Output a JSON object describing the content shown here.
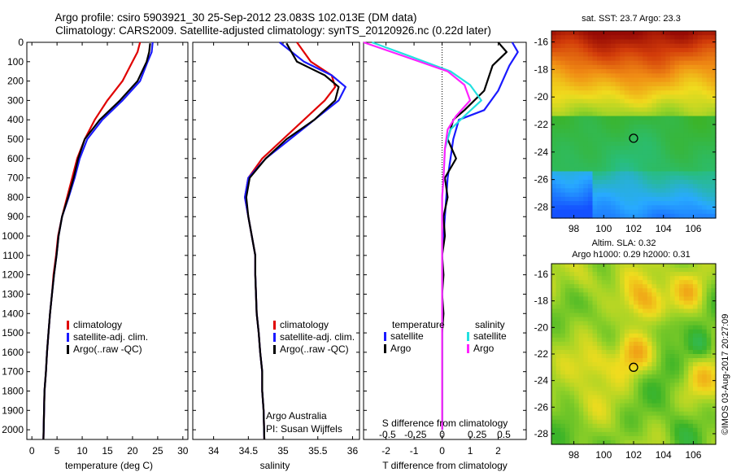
{
  "header": {
    "line1": "Argo profile: csiro 5903921_30 25-Sep-2012 23.083S 102.013E (DM data)",
    "line2": "Climatology: CARS2009. Satellite-adjusted climatology: synTS_20120926.nc (0.22d later)"
  },
  "colors": {
    "climatology": "#e00000",
    "satellite": "#1a1aff",
    "argo": "#000000",
    "sat_salinity": "#22e0e0",
    "argo_salinity": "#ff22ff"
  },
  "chart_data": [
    {
      "type": "line",
      "id": "temperature",
      "xlabel": "temperature (deg C)",
      "ylabel": "",
      "xlim": [
        -1,
        31
      ],
      "ylim": [
        2050,
        0
      ],
      "xticks": [
        0,
        5,
        10,
        15,
        20,
        25,
        30
      ],
      "yticks": [
        0,
        100,
        200,
        300,
        400,
        500,
        600,
        700,
        800,
        900,
        1000,
        1100,
        1200,
        1300,
        1400,
        1500,
        1600,
        1700,
        1800,
        1900,
        2000
      ],
      "legend": [
        "climatology",
        "satellite-adj. clim.",
        "Argo(..raw -QC)"
      ],
      "series": [
        {
          "name": "climatology",
          "color": "#e00000",
          "x": [
            21.5,
            21,
            20,
            18,
            15,
            12.5,
            10.5,
            9,
            8,
            7,
            6,
            5.2,
            4.8,
            4.3,
            4,
            3.6,
            3.3,
            3,
            2.8,
            2.5,
            2.3
          ],
          "y": [
            0,
            50,
            100,
            200,
            300,
            400,
            500,
            600,
            700,
            800,
            900,
            1000,
            1100,
            1200,
            1300,
            1400,
            1500,
            1600,
            1700,
            1800,
            2050
          ]
        },
        {
          "name": "satellite-adj. clim.",
          "color": "#1a1aff",
          "x": [
            24,
            23.8,
            23,
            21.5,
            18,
            14,
            11,
            9.5,
            8.5,
            7.3,
            6,
            5.3,
            4.9,
            4.4,
            4,
            3.6,
            3.3,
            3,
            2.8,
            2.5,
            2.3
          ],
          "y": [
            0,
            50,
            100,
            200,
            300,
            400,
            500,
            600,
            700,
            800,
            900,
            1000,
            1100,
            1200,
            1300,
            1400,
            1500,
            1600,
            1700,
            1800,
            2050
          ]
        },
        {
          "name": "Argo(..raw -QC)",
          "color": "#000000",
          "x": [
            23.5,
            23.3,
            22.8,
            21,
            17.5,
            13.5,
            10.5,
            9.2,
            8.3,
            7.2,
            6,
            5.3,
            4.9,
            4.4,
            4,
            3.6,
            3.3,
            3,
            2.8,
            2.5,
            2.3
          ],
          "y": [
            5,
            50,
            100,
            200,
            300,
            400,
            500,
            600,
            700,
            800,
            900,
            1000,
            1100,
            1200,
            1300,
            1400,
            1500,
            1600,
            1700,
            1800,
            2050
          ]
        }
      ]
    },
    {
      "type": "line",
      "id": "salinity",
      "xlabel": "salinity",
      "ylabel": "",
      "xlim": [
        33.7,
        36.1
      ],
      "ylim": [
        2050,
        0
      ],
      "xticks": [
        34,
        34.5,
        35,
        35.5,
        36
      ],
      "legend": [
        "climatology",
        "satellite-adj. clim.",
        "Argo(..raw -QC)"
      ],
      "notes": [
        "Argo Australia",
        "PI: Susan Wijffels"
      ],
      "series": [
        {
          "name": "climatology",
          "color": "#e00000",
          "x": [
            35.2,
            35.4,
            35.7,
            35.75,
            35.6,
            35.3,
            35,
            34.7,
            34.5,
            34.45,
            34.5,
            34.55,
            34.6,
            34.6,
            34.62,
            34.65,
            34.67,
            34.7,
            34.7,
            34.72,
            34.73
          ],
          "y": [
            0,
            100,
            170,
            230,
            300,
            400,
            500,
            600,
            700,
            800,
            900,
            1000,
            1100,
            1200,
            1400,
            1500,
            1600,
            1700,
            1800,
            1900,
            2050
          ]
        },
        {
          "name": "satellite-adj. clim.",
          "color": "#1a1aff",
          "x": [
            34.95,
            35.3,
            35.7,
            35.9,
            35.8,
            35.45,
            35.1,
            34.75,
            34.5,
            34.45,
            34.5,
            34.55,
            34.6,
            34.6,
            34.62,
            34.65,
            34.67,
            34.7,
            34.7,
            34.72,
            34.73
          ],
          "y": [
            0,
            100,
            170,
            230,
            300,
            400,
            500,
            600,
            700,
            800,
            900,
            1000,
            1100,
            1200,
            1400,
            1500,
            1600,
            1700,
            1800,
            1900,
            2050
          ]
        },
        {
          "name": "Argo(..raw -QC)",
          "color": "#000000",
          "x": [
            35.05,
            35.2,
            35.6,
            35.8,
            35.75,
            35.45,
            35.05,
            34.75,
            34.52,
            34.47,
            34.5,
            34.55,
            34.6,
            34.6,
            34.62,
            34.65,
            34.67,
            34.7,
            34.7,
            34.72,
            34.73
          ],
          "y": [
            5,
            100,
            170,
            230,
            300,
            400,
            500,
            600,
            700,
            800,
            900,
            1000,
            1100,
            1200,
            1400,
            1500,
            1600,
            1700,
            1800,
            1900,
            2050
          ]
        }
      ]
    },
    {
      "type": "line",
      "id": "difference",
      "xlabel": "T difference from climatology",
      "xlabel2": "S difference from climatology",
      "xlim": [
        -2.8,
        3
      ],
      "ylim": [
        2050,
        0
      ],
      "xticks": [
        -2,
        -1,
        0,
        1,
        2
      ],
      "xticks_s": [
        "-0.5",
        "-0.25",
        "0",
        "0.25",
        "0.5"
      ],
      "legend_left_title": "temperature",
      "legend_right_title": "salinity",
      "legend": [
        "satellite",
        "Argo",
        "satellite",
        "Argo"
      ],
      "series": [
        {
          "name": "satellite",
          "color": "#1a1aff",
          "x": [
            2.5,
            2.7,
            2.4,
            2,
            1.5,
            0.6,
            0.4,
            0.3,
            0.2,
            0.15,
            0.1,
            0.05,
            0,
            0,
            0,
            0,
            0,
            0,
            0,
            0
          ],
          "y": [
            0,
            50,
            120,
            250,
            350,
            400,
            500,
            600,
            700,
            800,
            900,
            1000,
            1100,
            1200,
            1300,
            1400,
            1500,
            1600,
            1800,
            2000
          ]
        },
        {
          "name": "Argo",
          "color": "#000000",
          "x": [
            2,
            2.3,
            1.8,
            1.5,
            0.8,
            0.4,
            0.2,
            0.5,
            0.1,
            0.2,
            0.05,
            0.1,
            0,
            0.05,
            0,
            0.05,
            0,
            0,
            0,
            0
          ],
          "y": [
            0,
            50,
            120,
            250,
            350,
            400,
            500,
            600,
            700,
            800,
            900,
            1000,
            1100,
            1200,
            1300,
            1400,
            1500,
            1600,
            1800,
            2000
          ]
        },
        {
          "name": "satellite",
          "color": "#22e0e0",
          "x": [
            -2.5,
            -1,
            0.3,
            1,
            1.4,
            0.8,
            0.3,
            0.1,
            0.05,
            0,
            0,
            0,
            0,
            0,
            0,
            0,
            0,
            0,
            0,
            0
          ],
          "y": [
            0,
            80,
            150,
            220,
            300,
            380,
            450,
            550,
            700,
            800,
            900,
            1000,
            1100,
            1200,
            1300,
            1400,
            1500,
            1600,
            1800,
            2000
          ]
        },
        {
          "name": "Argo",
          "color": "#ff22ff",
          "x": [
            -2.8,
            -1.2,
            0.2,
            0.8,
            1,
            0.5,
            0.2,
            0.1,
            0.05,
            0,
            0,
            0,
            0,
            0,
            0,
            0,
            0,
            0,
            0,
            0
          ],
          "y": [
            0,
            80,
            150,
            220,
            300,
            380,
            450,
            550,
            700,
            800,
            900,
            1000,
            1100,
            1200,
            1300,
            1400,
            1500,
            1600,
            1800,
            2000
          ]
        }
      ]
    },
    {
      "type": "heatmap",
      "id": "sst",
      "title": "sat. SST: 23.7 Argo: 23.3",
      "xlim": [
        96.5,
        107.5
      ],
      "ylim": [
        -28.8,
        -15.2
      ],
      "xticks": [
        98,
        100,
        102,
        104,
        106
      ],
      "yticks": [
        -16,
        -18,
        -20,
        -22,
        -24,
        -26,
        -28
      ],
      "marker": [
        102.0,
        -23.0
      ]
    },
    {
      "type": "heatmap",
      "id": "sla",
      "title": "Altim. SLA: 0.32",
      "subtitle": "Argo h1000: 0.29 h2000: 0.31",
      "xlim": [
        96.5,
        107.5
      ],
      "ylim": [
        -28.8,
        -15.2
      ],
      "xticks": [
        98,
        100,
        102,
        104,
        106
      ],
      "yticks": [
        -16,
        -18,
        -20,
        -22,
        -24,
        -26,
        -28
      ],
      "marker": [
        102.0,
        -23.0
      ]
    }
  ],
  "footer": {
    "credit": "©IMOS 03-Aug-2017 20:27:09"
  }
}
